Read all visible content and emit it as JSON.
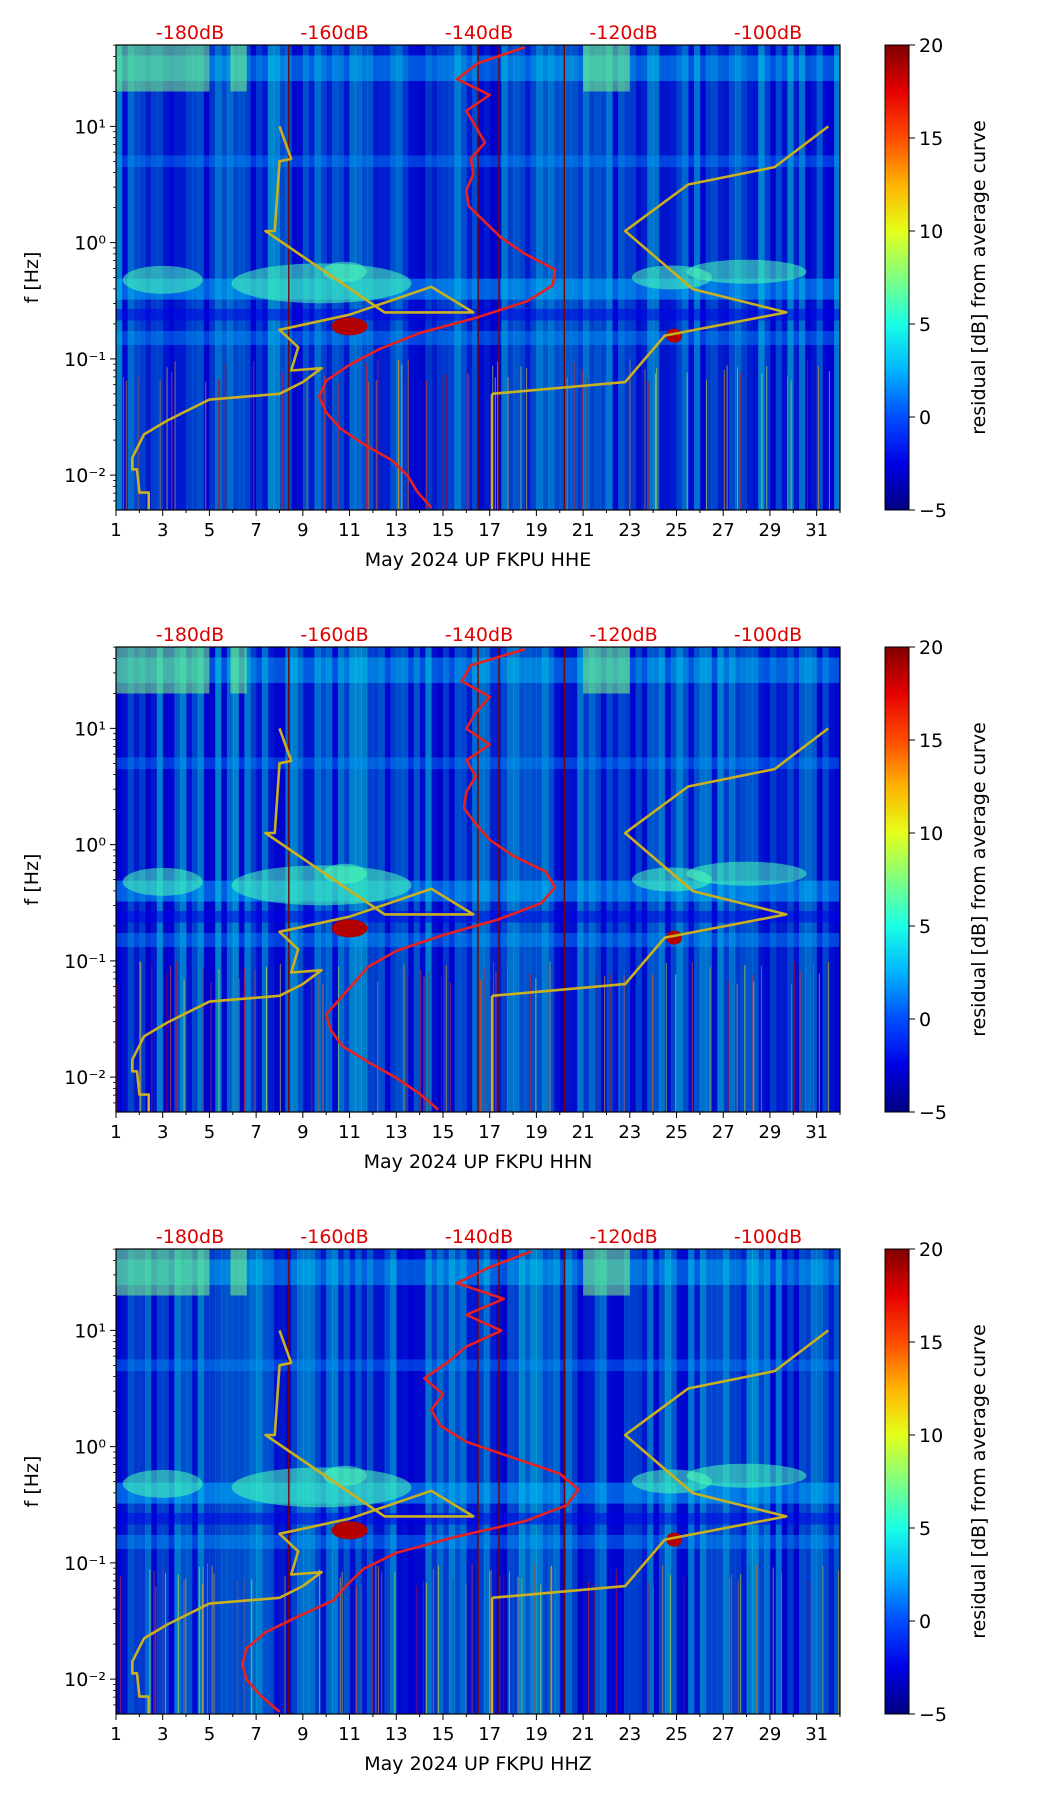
{
  "chart_data": [
    {
      "type": "heatmap",
      "title": "",
      "xlabel": "May 2024 UP FKPU  HHE",
      "ylabel": "f [Hz]",
      "x_ticks": [
        "1",
        "3",
        "5",
        "7",
        "9",
        "11",
        "13",
        "15",
        "17",
        "19",
        "21",
        "23",
        "25",
        "27",
        "29",
        "31"
      ],
      "y_ticks": [
        "10⁻²",
        "10⁻¹",
        "10⁰",
        "10¹"
      ],
      "top_ticks": [
        "-180dB",
        "-160dB",
        "-140dB",
        "-120dB",
        "-100dB"
      ],
      "colorbar": {
        "label": "residual [dB] from average curve",
        "ticks": [
          "−5",
          "0",
          "5",
          "10",
          "15",
          "20"
        ],
        "range": [
          -5,
          20
        ]
      },
      "xlim": [
        1,
        32
      ],
      "ylim_log10": [
        -2.3,
        1.7
      ],
      "noise_models": {
        "color": "#c8b020",
        "low_x": [
          2.4,
          2.4,
          2.0,
          1.9,
          1.7,
          1.7,
          2.2,
          3.2,
          5.0,
          8.0,
          9.0,
          9.8,
          8.5,
          8.8,
          8.0,
          11.0,
          14.5,
          16.3,
          12.5,
          7.4,
          7.8,
          8.0,
          8.5,
          8.0
        ],
        "high_x": [
          17.1,
          17.1,
          22.8,
          24.5,
          29.7,
          25.7,
          22.8,
          25.5,
          29.2,
          31.5
        ]
      },
      "mean_curve": {
        "color": "#e82020",
        "x": [
          14.5,
          13.9,
          13.5,
          12.8,
          11.6,
          10.6,
          10.0,
          9.7,
          10.0,
          11.0,
          12.3,
          14.0,
          16.5,
          18.6,
          19.7,
          19.8,
          18.5,
          17.5,
          16.8,
          16.1,
          16.0,
          16.3,
          16.2,
          16.8,
          16.4,
          16.0,
          17.0,
          15.6,
          16.5,
          18.5
        ]
      }
    },
    {
      "type": "heatmap",
      "title": "",
      "xlabel": "May 2024 UP FKPU  HHN",
      "ylabel": "f [Hz]",
      "x_ticks": [
        "1",
        "3",
        "5",
        "7",
        "9",
        "11",
        "13",
        "15",
        "17",
        "19",
        "21",
        "23",
        "25",
        "27",
        "29",
        "31"
      ],
      "y_ticks": [
        "10⁻²",
        "10⁻¹",
        "10⁰",
        "10¹"
      ],
      "top_ticks": [
        "-180dB",
        "-160dB",
        "-140dB",
        "-120dB",
        "-100dB"
      ],
      "colorbar": {
        "label": "residual [dB] from average curve",
        "ticks": [
          "−5",
          "0",
          "5",
          "10",
          "15",
          "20"
        ],
        "range": [
          -5,
          20
        ]
      },
      "xlim": [
        1,
        32
      ],
      "ylim_log10": [
        -2.3,
        1.7
      ],
      "noise_models": {
        "color": "#c8b020",
        "low_x": [
          2.4,
          2.4,
          2.0,
          1.9,
          1.7,
          1.7,
          2.2,
          3.2,
          5.0,
          8.0,
          9.0,
          9.8,
          8.5,
          8.8,
          8.0,
          11.0,
          14.5,
          16.3,
          12.5,
          7.4,
          7.8,
          8.0,
          8.5,
          8.0
        ],
        "high_x": [
          17.1,
          17.1,
          22.8,
          24.5,
          29.7,
          25.7,
          22.8,
          25.5,
          29.2,
          31.5
        ]
      },
      "mean_curve": {
        "color": "#e82020",
        "x": [
          14.8,
          14.0,
          13.0,
          11.8,
          10.7,
          10.2,
          10.0,
          10.6,
          11.2,
          11.8,
          13.0,
          15.0,
          17.4,
          19.2,
          19.8,
          19.4,
          18.0,
          17.0,
          16.4,
          15.9,
          16.0,
          16.4,
          16.0,
          17.0,
          16.0,
          16.4,
          17.0,
          15.8,
          16.2,
          18.5
        ]
      }
    },
    {
      "type": "heatmap",
      "title": "",
      "xlabel": "May 2024 UP FKPU  HHZ",
      "ylabel": "f [Hz]",
      "x_ticks": [
        "1",
        "3",
        "5",
        "7",
        "9",
        "11",
        "13",
        "15",
        "17",
        "19",
        "21",
        "23",
        "25",
        "27",
        "29",
        "31"
      ],
      "y_ticks": [
        "10⁻²",
        "10⁻¹",
        "10⁰",
        "10¹"
      ],
      "top_ticks": [
        "-180dB",
        "-160dB",
        "-140dB",
        "-120dB",
        "-100dB"
      ],
      "colorbar": {
        "label": "residual [dB] from average curve",
        "ticks": [
          "−5",
          "0",
          "5",
          "10",
          "15",
          "20"
        ],
        "range": [
          -5,
          20
        ]
      },
      "xlim": [
        1,
        32
      ],
      "ylim_log10": [
        -2.3,
        1.7
      ],
      "noise_models": {
        "color": "#c8b020",
        "low_x": [
          2.4,
          2.4,
          2.0,
          1.9,
          1.7,
          1.7,
          2.2,
          3.2,
          5.0,
          8.0,
          9.0,
          9.8,
          8.5,
          8.8,
          8.0,
          11.0,
          14.5,
          16.3,
          12.5,
          7.4,
          7.8,
          8.0,
          8.5,
          8.0
        ],
        "high_x": [
          17.1,
          17.1,
          22.8,
          24.5,
          29.7,
          25.7,
          22.8,
          25.5,
          29.2,
          31.5
        ]
      },
      "mean_curve": {
        "color": "#e82020",
        "x": [
          8.0,
          7.2,
          6.6,
          6.4,
          6.6,
          7.4,
          8.8,
          10.3,
          10.9,
          11.6,
          13.0,
          15.5,
          18.5,
          20.3,
          20.8,
          20.0,
          18.0,
          16.0,
          14.9,
          14.5,
          15.0,
          14.2,
          15.2,
          16.0,
          17.5,
          16.0,
          17.6,
          15.6,
          17.0,
          18.8
        ]
      }
    }
  ]
}
